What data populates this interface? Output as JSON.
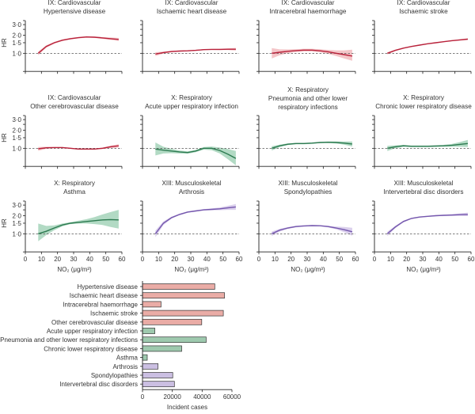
{
  "colors": {
    "cardiovascular_line": "#b8213a",
    "cardiovascular_band": "#f0b2b6",
    "respiratory_line": "#2c7a50",
    "respiratory_band": "#98ceb0",
    "musculoskeletal_line": "#7457ad",
    "musculoskeletal_band": "#cdbfe6",
    "bar_cardiovascular": "#eaaca6",
    "bar_respiratory": "#9ec9ae",
    "bar_musculoskeletal": "#cbbfe2"
  },
  "chart_data": [
    {
      "type": "line",
      "title": [
        "IX: Cardiovascular",
        "Hypertensive disease"
      ],
      "group": "cardiovascular",
      "ylabel": "HR",
      "xlabel": "",
      "yscale": "log",
      "ylim": [
        0.5,
        3.5
      ],
      "yticks": [
        "3·0",
        "2·0",
        "1·5",
        "1·0"
      ],
      "xlim": [
        0,
        60
      ],
      "xticks": [],
      "reference_line": 1.0,
      "x": [
        8,
        13,
        18,
        23,
        28,
        33,
        38,
        43,
        48,
        53,
        58
      ],
      "y": [
        1.0,
        1.3,
        1.5,
        1.65,
        1.75,
        1.82,
        1.87,
        1.85,
        1.8,
        1.75,
        1.7
      ],
      "lower": [
        0.93,
        1.24,
        1.45,
        1.6,
        1.7,
        1.77,
        1.82,
        1.8,
        1.74,
        1.67,
        1.6
      ],
      "upper": [
        1.07,
        1.36,
        1.55,
        1.7,
        1.8,
        1.87,
        1.92,
        1.9,
        1.86,
        1.83,
        1.8
      ]
    },
    {
      "type": "line",
      "title": [
        "IX: Cardiovascular",
        "Ischaemic heart disease"
      ],
      "group": "cardiovascular",
      "ylabel": "",
      "yscale": "log",
      "ylim": [
        0.5,
        3.5
      ],
      "yticks": [],
      "xlim": [
        0,
        60
      ],
      "xticks": [],
      "reference_line": 1.0,
      "x": [
        8,
        13,
        18,
        23,
        28,
        33,
        38,
        43,
        48,
        53,
        58
      ],
      "y": [
        0.97,
        1.03,
        1.07,
        1.09,
        1.1,
        1.12,
        1.15,
        1.16,
        1.16,
        1.17,
        1.17
      ],
      "lower": [
        0.9,
        0.99,
        1.04,
        1.07,
        1.08,
        1.1,
        1.13,
        1.14,
        1.13,
        1.13,
        1.11
      ],
      "upper": [
        1.04,
        1.07,
        1.1,
        1.11,
        1.12,
        1.14,
        1.17,
        1.18,
        1.19,
        1.21,
        1.23
      ]
    },
    {
      "type": "line",
      "title": [
        "IX: Cardiovascular",
        "Intracerebral haemorrhage"
      ],
      "group": "cardiovascular",
      "ylabel": "",
      "yscale": "log",
      "ylim": [
        0.5,
        3.5
      ],
      "yticks": [],
      "xlim": [
        0,
        60
      ],
      "xticks": [],
      "reference_line": 1.0,
      "x": [
        8,
        13,
        18,
        23,
        28,
        33,
        38,
        43,
        48,
        53,
        58
      ],
      "y": [
        1.0,
        1.04,
        1.08,
        1.11,
        1.13,
        1.13,
        1.1,
        1.06,
        1.0,
        0.95,
        0.9
      ],
      "lower": [
        0.82,
        0.93,
        1.0,
        1.05,
        1.07,
        1.07,
        1.04,
        0.98,
        0.9,
        0.82,
        0.75
      ],
      "upper": [
        1.22,
        1.16,
        1.16,
        1.17,
        1.19,
        1.19,
        1.17,
        1.14,
        1.12,
        1.12,
        1.15
      ]
    },
    {
      "type": "line",
      "title": [
        "IX: Cardiovascular",
        "Ischaemic stroke"
      ],
      "group": "cardiovascular",
      "ylabel": "",
      "yscale": "log",
      "ylim": [
        0.5,
        3.5
      ],
      "yticks": [],
      "xlim": [
        0,
        60
      ],
      "xticks": [],
      "reference_line": 1.0,
      "x": [
        8,
        13,
        18,
        23,
        28,
        33,
        38,
        43,
        48,
        53,
        58
      ],
      "y": [
        1.0,
        1.12,
        1.22,
        1.3,
        1.37,
        1.44,
        1.5,
        1.56,
        1.62,
        1.67,
        1.72
      ],
      "lower": [
        0.96,
        1.09,
        1.2,
        1.28,
        1.35,
        1.42,
        1.48,
        1.54,
        1.59,
        1.63,
        1.66
      ],
      "upper": [
        1.04,
        1.15,
        1.24,
        1.32,
        1.39,
        1.46,
        1.52,
        1.58,
        1.65,
        1.71,
        1.78
      ]
    },
    {
      "type": "line",
      "title": [
        "IX: Cardiovascular",
        "Other cerebrovascular disease"
      ],
      "group": "cardiovascular",
      "ylabel": "HR",
      "yscale": "log",
      "ylim": [
        0.5,
        3.5
      ],
      "yticks": [
        "3·0",
        "2·0",
        "1·5",
        "1·0"
      ],
      "xlim": [
        0,
        60
      ],
      "xticks": [],
      "reference_line": 1.0,
      "x": [
        8,
        13,
        18,
        23,
        28,
        33,
        38,
        43,
        48,
        53,
        58
      ],
      "y": [
        0.98,
        1.02,
        1.03,
        1.03,
        1.0,
        0.97,
        0.97,
        0.97,
        1.0,
        1.06,
        1.1
      ],
      "lower": [
        0.91,
        0.98,
        1.01,
        1.01,
        0.98,
        0.95,
        0.95,
        0.95,
        0.97,
        1.01,
        1.03
      ],
      "upper": [
        1.05,
        1.06,
        1.05,
        1.05,
        1.02,
        0.99,
        0.99,
        0.99,
        1.03,
        1.11,
        1.17
      ]
    },
    {
      "type": "line",
      "title": [
        "X: Respiratory",
        "Acute upper respiratory infection"
      ],
      "group": "respiratory",
      "ylabel": "",
      "yscale": "log",
      "ylim": [
        0.5,
        3.5
      ],
      "yticks": [],
      "xlim": [
        0,
        60
      ],
      "xticks": [],
      "reference_line": 1.0,
      "x": [
        8,
        13,
        18,
        23,
        28,
        33,
        38,
        43,
        48,
        53,
        58
      ],
      "y": [
        0.97,
        0.93,
        0.9,
        0.87,
        0.85,
        0.9,
        1.0,
        1.0,
        0.92,
        0.8,
        0.68
      ],
      "lower": [
        0.76,
        0.82,
        0.83,
        0.82,
        0.81,
        0.86,
        0.95,
        0.93,
        0.82,
        0.66,
        0.52
      ],
      "upper": [
        1.25,
        1.06,
        0.98,
        0.92,
        0.89,
        0.94,
        1.05,
        1.07,
        1.03,
        0.97,
        0.9
      ]
    },
    {
      "type": "line",
      "title": [
        "X: Respiratory",
        "Pneumonia and other lower",
        "respiratory infections"
      ],
      "group": "respiratory",
      "ylabel": "",
      "yscale": "log",
      "ylim": [
        0.5,
        3.5
      ],
      "yticks": [],
      "xlim": [
        0,
        60
      ],
      "xticks": [],
      "reference_line": 1.0,
      "x": [
        8,
        13,
        18,
        23,
        28,
        33,
        38,
        43,
        48,
        53,
        58
      ],
      "y": [
        1.0,
        1.1,
        1.17,
        1.2,
        1.2,
        1.22,
        1.25,
        1.26,
        1.25,
        1.22,
        1.18
      ],
      "lower": [
        0.92,
        1.05,
        1.13,
        1.17,
        1.17,
        1.19,
        1.22,
        1.22,
        1.2,
        1.15,
        1.07
      ],
      "upper": [
        1.08,
        1.15,
        1.21,
        1.23,
        1.23,
        1.25,
        1.28,
        1.3,
        1.3,
        1.3,
        1.3
      ]
    },
    {
      "type": "line",
      "title": [
        "X: Respiratory",
        "Chronic lower respiratory disease"
      ],
      "group": "respiratory",
      "ylabel": "",
      "yscale": "log",
      "ylim": [
        0.5,
        3.5
      ],
      "yticks": [],
      "xlim": [
        0,
        60
      ],
      "xticks": [],
      "reference_line": 1.0,
      "x": [
        8,
        13,
        18,
        23,
        28,
        33,
        38,
        43,
        48,
        53,
        58
      ],
      "y": [
        1.0,
        1.06,
        1.1,
        1.08,
        1.08,
        1.08,
        1.09,
        1.1,
        1.12,
        1.16,
        1.2
      ],
      "lower": [
        0.9,
        1.0,
        1.06,
        1.05,
        1.05,
        1.05,
        1.06,
        1.06,
        1.06,
        1.06,
        1.05
      ],
      "upper": [
        1.1,
        1.12,
        1.14,
        1.11,
        1.11,
        1.11,
        1.12,
        1.14,
        1.18,
        1.27,
        1.38
      ]
    },
    {
      "type": "line",
      "title": [
        "X: Respiratory",
        "Asthma"
      ],
      "group": "respiratory",
      "ylabel": "HR",
      "xlabel": "NO₂ (μg/m³)",
      "yscale": "log",
      "ylim": [
        0.5,
        3.5
      ],
      "yticks": [
        "3·0",
        "2·0",
        "1·5",
        "1·0"
      ],
      "xlim": [
        0,
        60
      ],
      "xticks": [
        "0",
        "10",
        "20",
        "30",
        "40",
        "50",
        "60"
      ],
      "reference_line": 1.0,
      "x": [
        8,
        13,
        18,
        23,
        28,
        33,
        38,
        43,
        48,
        53,
        58
      ],
      "y": [
        1.0,
        1.1,
        1.25,
        1.4,
        1.5,
        1.55,
        1.6,
        1.65,
        1.7,
        1.72,
        1.7
      ],
      "lower": [
        0.75,
        0.95,
        1.15,
        1.33,
        1.45,
        1.48,
        1.48,
        1.45,
        1.4,
        1.3,
        1.22
      ],
      "upper": [
        1.48,
        1.35,
        1.38,
        1.48,
        1.56,
        1.65,
        1.75,
        1.9,
        2.1,
        2.3,
        2.5
      ]
    },
    {
      "type": "line",
      "title": [
        "XIII: Musculoskeletal",
        "Arthrosis"
      ],
      "group": "musculoskeletal",
      "ylabel": "",
      "xlabel": "NO₂ (μg/m³)",
      "yscale": "log",
      "ylim": [
        0.5,
        3.5
      ],
      "yticks": [],
      "xlim": [
        0,
        60
      ],
      "xticks": [
        "0",
        "10",
        "20",
        "30",
        "40",
        "50",
        "60"
      ],
      "reference_line": 1.0,
      "x": [
        8,
        13,
        18,
        23,
        28,
        33,
        38,
        43,
        48,
        53,
        58
      ],
      "y": [
        1.0,
        1.5,
        1.85,
        2.1,
        2.3,
        2.4,
        2.5,
        2.55,
        2.6,
        2.7,
        2.8
      ],
      "lower": [
        0.88,
        1.4,
        1.78,
        2.04,
        2.24,
        2.34,
        2.43,
        2.46,
        2.47,
        2.5,
        2.5
      ],
      "upper": [
        1.13,
        1.6,
        1.92,
        2.16,
        2.36,
        2.46,
        2.57,
        2.64,
        2.74,
        2.92,
        3.12
      ]
    },
    {
      "type": "line",
      "title": [
        "XIII: Musculoskeletal",
        "Spondylopathies"
      ],
      "group": "musculoskeletal",
      "ylabel": "",
      "xlabel": "NO₂ (μg/m³)",
      "yscale": "log",
      "ylim": [
        0.5,
        3.5
      ],
      "yticks": [],
      "xlim": [
        0,
        60
      ],
      "xticks": [
        "0",
        "10",
        "20",
        "30",
        "40",
        "50",
        "60"
      ],
      "reference_line": 1.0,
      "x": [
        8,
        13,
        18,
        23,
        28,
        33,
        38,
        43,
        48,
        53,
        58
      ],
      "y": [
        1.0,
        1.15,
        1.25,
        1.32,
        1.35,
        1.37,
        1.36,
        1.32,
        1.25,
        1.17,
        1.08
      ],
      "lower": [
        0.92,
        1.09,
        1.21,
        1.28,
        1.32,
        1.34,
        1.33,
        1.28,
        1.19,
        1.06,
        0.93
      ],
      "upper": [
        1.09,
        1.21,
        1.29,
        1.36,
        1.38,
        1.4,
        1.39,
        1.36,
        1.32,
        1.3,
        1.26
      ]
    },
    {
      "type": "line",
      "title": [
        "XIII: Musculoskeletal",
        "Intervertebral disc disorders"
      ],
      "group": "musculoskeletal",
      "ylabel": "",
      "xlabel": "NO₂ (μg/m³)",
      "yscale": "log",
      "ylim": [
        0.5,
        3.5
      ],
      "yticks": [],
      "xlim": [
        0,
        60
      ],
      "xticks": [
        "0",
        "10",
        "20",
        "30",
        "40",
        "50",
        "60"
      ],
      "reference_line": 1.0,
      "x": [
        8,
        13,
        18,
        23,
        28,
        33,
        38,
        43,
        48,
        53,
        58
      ],
      "y": [
        1.0,
        1.3,
        1.6,
        1.8,
        1.9,
        1.95,
        2.0,
        2.03,
        2.05,
        2.08,
        2.1
      ],
      "lower": [
        0.92,
        1.24,
        1.55,
        1.76,
        1.86,
        1.91,
        1.96,
        1.98,
        1.98,
        1.98,
        1.97
      ],
      "upper": [
        1.08,
        1.36,
        1.65,
        1.84,
        1.94,
        1.99,
        2.04,
        2.08,
        2.12,
        2.18,
        2.25
      ]
    },
    {
      "type": "bar",
      "orientation": "horizontal",
      "xlabel": "Incident cases",
      "xlim": [
        0,
        60000
      ],
      "xticks": [
        "0",
        "20000",
        "40000",
        "60000"
      ],
      "categories": [
        "Hypertensive disease",
        "Ischaemic heart disease",
        "Intracerebral haemorrhage",
        "Ischaemic stroke",
        "Other cerebrovascular disease",
        "Acute upper respiratory infection",
        "Pneumonia and other lower respiratory infections",
        "Chronic lower respiratory disease",
        "Asthma",
        "Arthrosis",
        "Spondylopathies",
        "Intervertebral disc disorders"
      ],
      "groups": [
        "cardiovascular",
        "cardiovascular",
        "cardiovascular",
        "cardiovascular",
        "cardiovascular",
        "respiratory",
        "respiratory",
        "respiratory",
        "respiratory",
        "musculoskeletal",
        "musculoskeletal",
        "musculoskeletal"
      ],
      "values": [
        48500,
        55000,
        12400,
        54200,
        39700,
        8300,
        42700,
        26300,
        3200,
        10400,
        20300,
        21400
      ]
    }
  ]
}
